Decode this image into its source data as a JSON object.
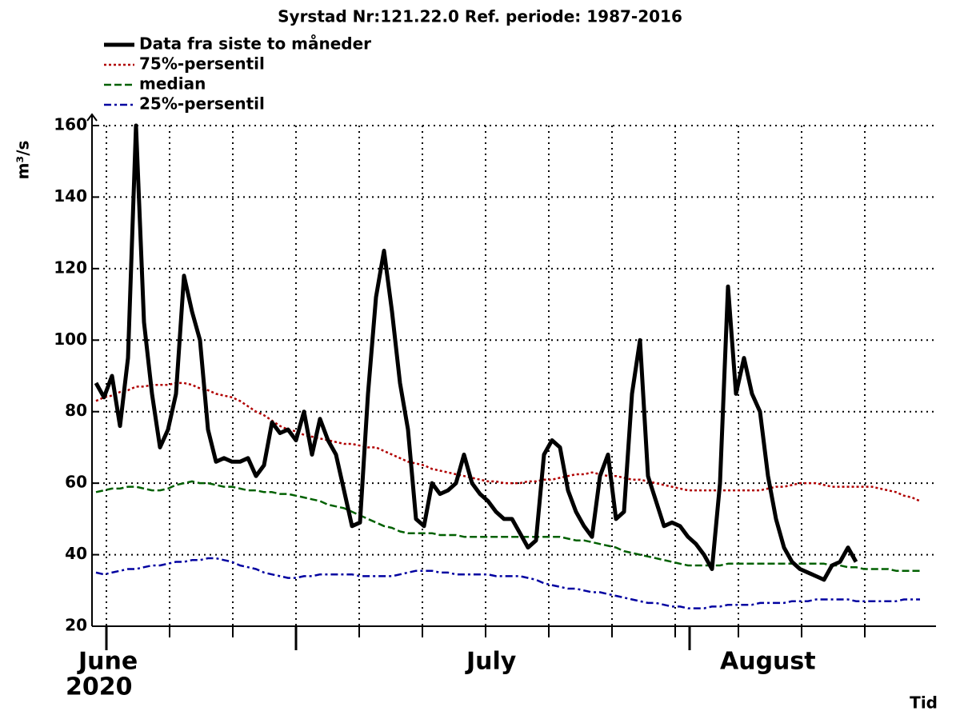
{
  "chart_data": {
    "type": "line",
    "title": "Syrstad Nr:121.22.0 Ref. periode: 1987-2016",
    "ylabel": "m³/s",
    "xlabel": "Tid",
    "x_labels": [
      "June",
      "July",
      "August"
    ],
    "x_sublabel": "2020",
    "ylim": [
      20,
      160
    ],
    "yticks": [
      20,
      40,
      60,
      80,
      100,
      120,
      140,
      160
    ],
    "grid": true,
    "legend": "top-left",
    "series": [
      {
        "name": "Data fra siste to måneder",
        "color": "#000000",
        "style": "solid",
        "values": [
          88,
          84,
          90,
          76,
          95,
          160,
          105,
          85,
          70,
          75,
          85,
          118,
          108,
          100,
          75,
          66,
          67,
          66,
          66,
          67,
          62,
          65,
          77,
          74,
          75,
          72,
          80,
          68,
          78,
          72,
          68,
          58,
          48,
          49,
          85,
          112,
          125,
          108,
          88,
          75,
          50,
          48,
          60,
          57,
          58,
          60,
          68,
          60,
          57,
          55,
          52,
          50,
          50,
          46,
          42,
          44,
          68,
          72,
          70,
          58,
          52,
          48,
          45,
          62,
          68,
          50,
          52,
          85,
          100,
          62,
          55,
          48,
          49,
          48,
          45,
          43,
          40,
          36,
          60,
          115,
          85,
          95,
          85,
          80,
          62,
          50,
          42,
          38,
          36,
          35,
          34,
          33,
          37,
          38,
          42,
          38,
          null,
          null,
          null,
          null,
          null,
          null,
          null,
          null
        ]
      },
      {
        "name": "75%-persentil",
        "color": "#b00000",
        "style": "dotted",
        "values": [
          83,
          84,
          84.5,
          85.5,
          86,
          87,
          87,
          87.5,
          87.5,
          87.5,
          88,
          88,
          87.5,
          86.5,
          86,
          85,
          84.5,
          84,
          83,
          81.5,
          80,
          79,
          77.5,
          76,
          75,
          74.5,
          73.5,
          73,
          72.5,
          72,
          71.5,
          71,
          71,
          70.5,
          70,
          70,
          69,
          68,
          67,
          66,
          65.5,
          65,
          64,
          63.5,
          63,
          62.5,
          62,
          61.5,
          61,
          60.5,
          60.5,
          60,
          60,
          60,
          60.5,
          60.5,
          61,
          61,
          61.5,
          62,
          62.5,
          62.5,
          63,
          62.5,
          62,
          62,
          61.5,
          61,
          61,
          60.5,
          60,
          59.5,
          59,
          58.5,
          58,
          58,
          58,
          58,
          58,
          58,
          58,
          58,
          58,
          58,
          58.5,
          59,
          59,
          59.5,
          60,
          60,
          60,
          59.5,
          59,
          59,
          59,
          59,
          59,
          59,
          58.5,
          58,
          57.5,
          56.5,
          56,
          55
        ]
      },
      {
        "name": "median",
        "color": "#006000",
        "style": "dashed",
        "values": [
          57.5,
          58,
          58.5,
          58.5,
          59,
          59,
          58.5,
          58,
          58,
          58.5,
          59.5,
          60,
          60.5,
          60,
          60,
          59.5,
          59,
          59,
          58.5,
          58,
          58,
          57.5,
          57.5,
          57,
          57,
          56.5,
          56,
          55.5,
          55,
          54,
          53.5,
          53,
          52,
          51,
          50,
          49,
          48,
          47.5,
          46.5,
          46,
          46,
          46,
          46,
          45.5,
          45.5,
          45.5,
          45,
          45,
          45,
          45,
          45,
          45,
          45,
          45,
          45,
          45,
          45,
          45,
          45,
          44.5,
          44,
          44,
          43.5,
          43,
          42.5,
          42,
          41,
          40.5,
          40,
          39.5,
          39,
          38.5,
          38,
          37.5,
          37,
          37,
          37,
          37,
          37,
          37.5,
          37.5,
          37.5,
          37.5,
          37.5,
          37.5,
          37.5,
          37.5,
          37.5,
          37.5,
          37.5,
          37.5,
          37.5,
          37,
          37,
          36.5,
          36.5,
          36,
          36,
          36,
          36,
          35.5,
          35.5,
          35.5,
          35.5
        ]
      },
      {
        "name": "25%-persentil",
        "color": "#0000a0",
        "style": "dashdot",
        "values": [
          35,
          34.5,
          35,
          35.5,
          36,
          36,
          36.5,
          37,
          37,
          37.5,
          38,
          38,
          38.5,
          38.5,
          39,
          39,
          38.5,
          38,
          37,
          36.5,
          36,
          35,
          34.5,
          34,
          33.5,
          33.5,
          34,
          34,
          34.5,
          34.5,
          34.5,
          34.5,
          34.5,
          34,
          34,
          34,
          34,
          34,
          34.5,
          35,
          35.5,
          35.5,
          35.5,
          35,
          35,
          34.5,
          34.5,
          34.5,
          34.5,
          34.5,
          34,
          34,
          34,
          34,
          33.5,
          33,
          32,
          31.5,
          31,
          30.5,
          30.5,
          30,
          29.5,
          29.5,
          29,
          28.5,
          28,
          27.5,
          27,
          26.5,
          26.5,
          26,
          25.5,
          25.5,
          25,
          25,
          25,
          25.5,
          25.5,
          26,
          26,
          26,
          26,
          26.5,
          26.5,
          26.5,
          26.5,
          27,
          27,
          27,
          27.5,
          27.5,
          27.5,
          27.5,
          27.5,
          27,
          27,
          27,
          27,
          27,
          27,
          27.5,
          27.5,
          27.5
        ]
      }
    ]
  }
}
